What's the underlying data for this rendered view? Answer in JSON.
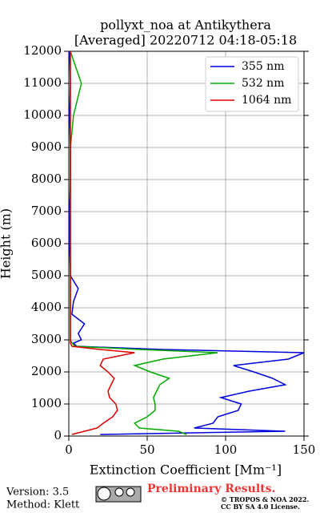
{
  "chart_data": {
    "type": "profile",
    "title": "pollyxt_noa at Antikythera",
    "subtitle": "[Averaged] 20220712 04:18-05:18",
    "x_label": "Extinction Coefficient [Mm⁻¹]",
    "y_label": "Height (m)",
    "xlim": [
      0,
      150
    ],
    "xticks": [
      0,
      50,
      100,
      150
    ],
    "ylim": [
      0,
      12000
    ],
    "yticks": [
      0,
      1000,
      2000,
      3000,
      4000,
      5000,
      6000,
      7000,
      8000,
      9000,
      10000,
      11000,
      12000
    ],
    "grid": true,
    "legend": "upper-right",
    "y": [
      50,
      150,
      250,
      400,
      600,
      800,
      1000,
      1200,
      1400,
      1600,
      1800,
      2000,
      2200,
      2400,
      2600,
      2700,
      2800,
      2900,
      3000,
      3200,
      3500,
      3800,
      4200,
      4600,
      5000,
      6000,
      7000,
      8000,
      9000,
      10000,
      11000,
      12000
    ],
    "series": [
      {
        "name": "355 nm",
        "color": "#0000dd",
        "values": [
          20,
          138,
          80,
          92,
          95,
          108,
          110,
          97,
          115,
          138,
          130,
          118,
          105,
          140,
          150,
          60,
          5,
          3,
          8,
          6,
          10,
          2,
          3,
          6,
          1,
          0.5,
          0.5,
          1,
          1,
          0.5,
          1,
          0.5
        ]
      },
      {
        "name": "532 nm",
        "color": "#00aa00",
        "values": [
          75,
          70,
          45,
          42,
          50,
          55,
          55,
          54,
          56,
          58,
          64,
          52,
          42,
          60,
          95,
          45,
          4,
          2,
          1,
          1,
          1,
          1,
          1,
          1,
          1,
          1,
          1,
          1,
          1,
          3,
          8,
          1
        ]
      },
      {
        "name": "1064 nm",
        "color": "#dd0000",
        "values": [
          2,
          10,
          18,
          22,
          28,
          31,
          30,
          26,
          25,
          27,
          29,
          25,
          20,
          22,
          42,
          20,
          2,
          1,
          1,
          1,
          1,
          1,
          1,
          1,
          1,
          1,
          1,
          1,
          1,
          1,
          1,
          1
        ]
      }
    ],
    "footer": {
      "version": "Version: 3.5",
      "method": "Method: Klett",
      "preliminary": "Preliminary Results.",
      "copyright": "© TROPOS & NOA 2022.",
      "license": "CC BY SA 4.0 License."
    }
  }
}
